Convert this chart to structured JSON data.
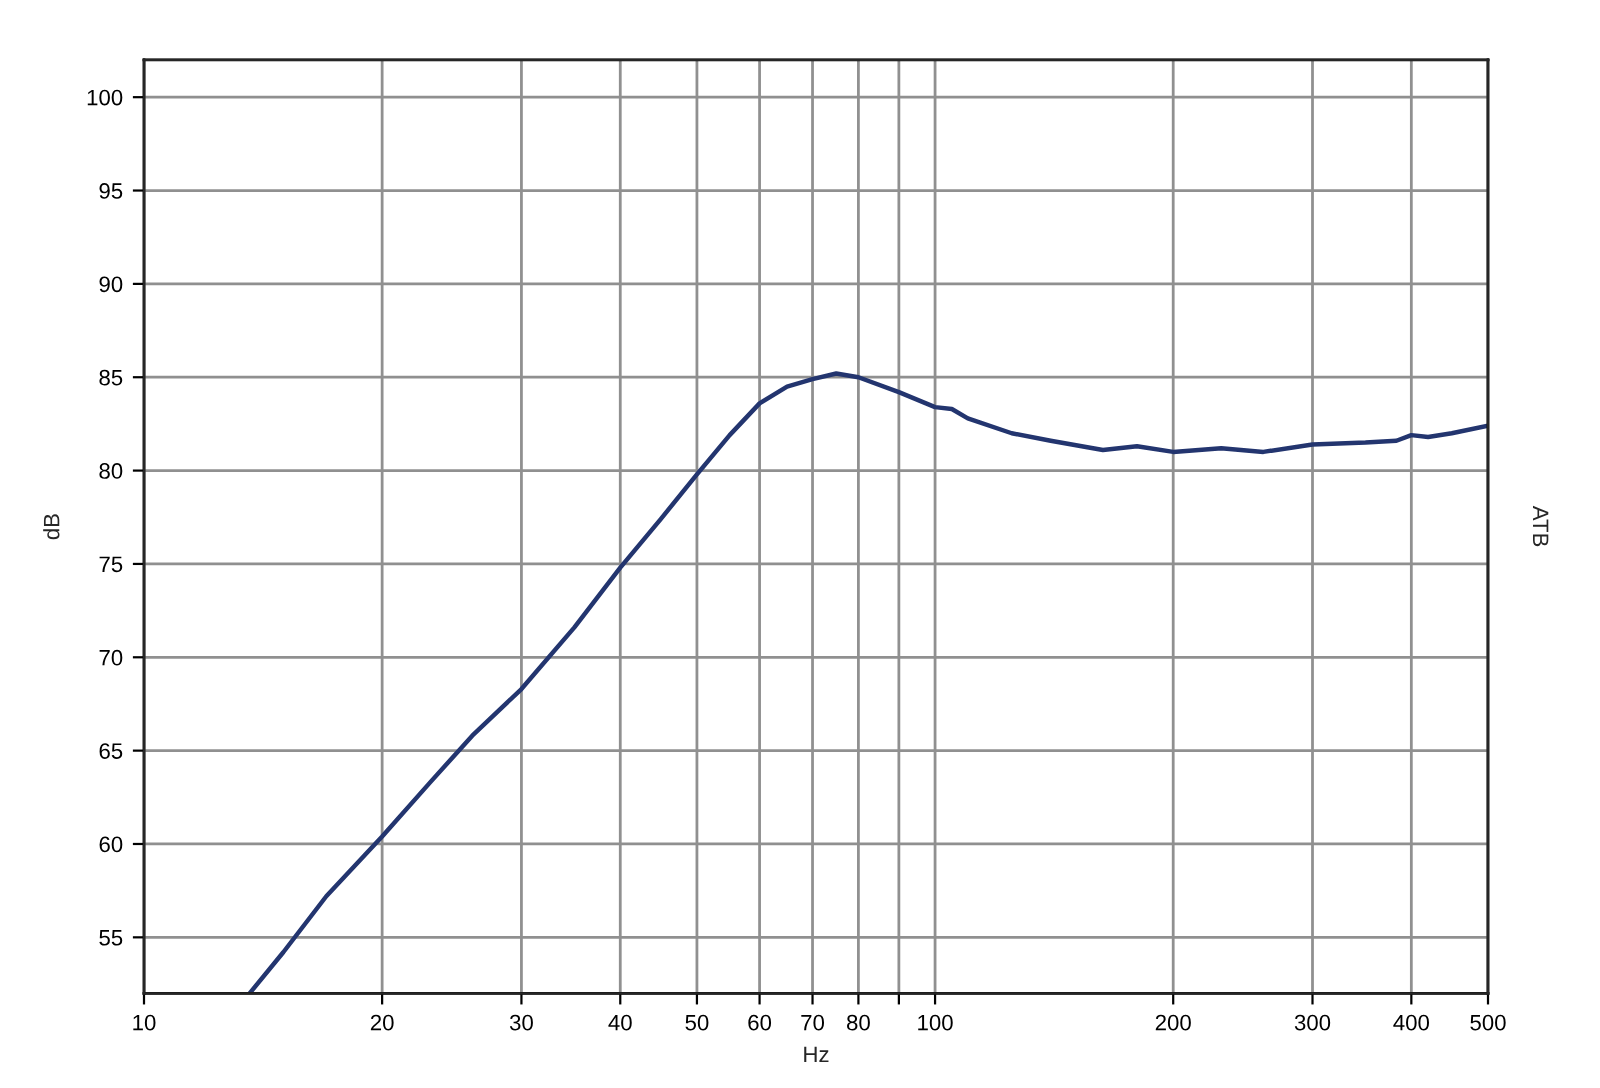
{
  "chart_data": {
    "type": "line",
    "xlabel": "Hz",
    "ylabel": "dB",
    "y2label": "ATB",
    "log": "x",
    "grid": true,
    "marker": "none",
    "line_style": "solid",
    "xlim": [
      10,
      500
    ],
    "ylim": [
      52,
      102
    ],
    "xticks": [
      10,
      20,
      30,
      40,
      50,
      60,
      70,
      80,
      {
        "value": 90,
        "label": null
      },
      100,
      200,
      300,
      400,
      500
    ],
    "yticks": [
      55,
      60,
      65,
      70,
      75,
      80,
      85,
      90,
      95,
      100
    ],
    "series": [
      {
        "color": "#23356f",
        "x": [
          13.6,
          15,
          17,
          20,
          23,
          26,
          30,
          35,
          40,
          45,
          50,
          55,
          60,
          65,
          70,
          75,
          80,
          90,
          100,
          105,
          110,
          125,
          140,
          163,
          180,
          200,
          230,
          260,
          300,
          350,
          383,
          400,
          420,
          450,
          500
        ],
        "values": [
          52,
          54.2,
          57.2,
          60.4,
          63.3,
          65.8,
          68.3,
          71.6,
          74.8,
          77.4,
          79.8,
          81.9,
          83.6,
          84.5,
          84.9,
          85.2,
          85.0,
          84.2,
          83.4,
          83.3,
          82.8,
          82.0,
          81.6,
          81.1,
          81.3,
          81.0,
          81.2,
          81.0,
          81.4,
          81.5,
          81.6,
          81.9,
          81.8,
          82.0,
          82.4
        ]
      }
    ]
  }
}
